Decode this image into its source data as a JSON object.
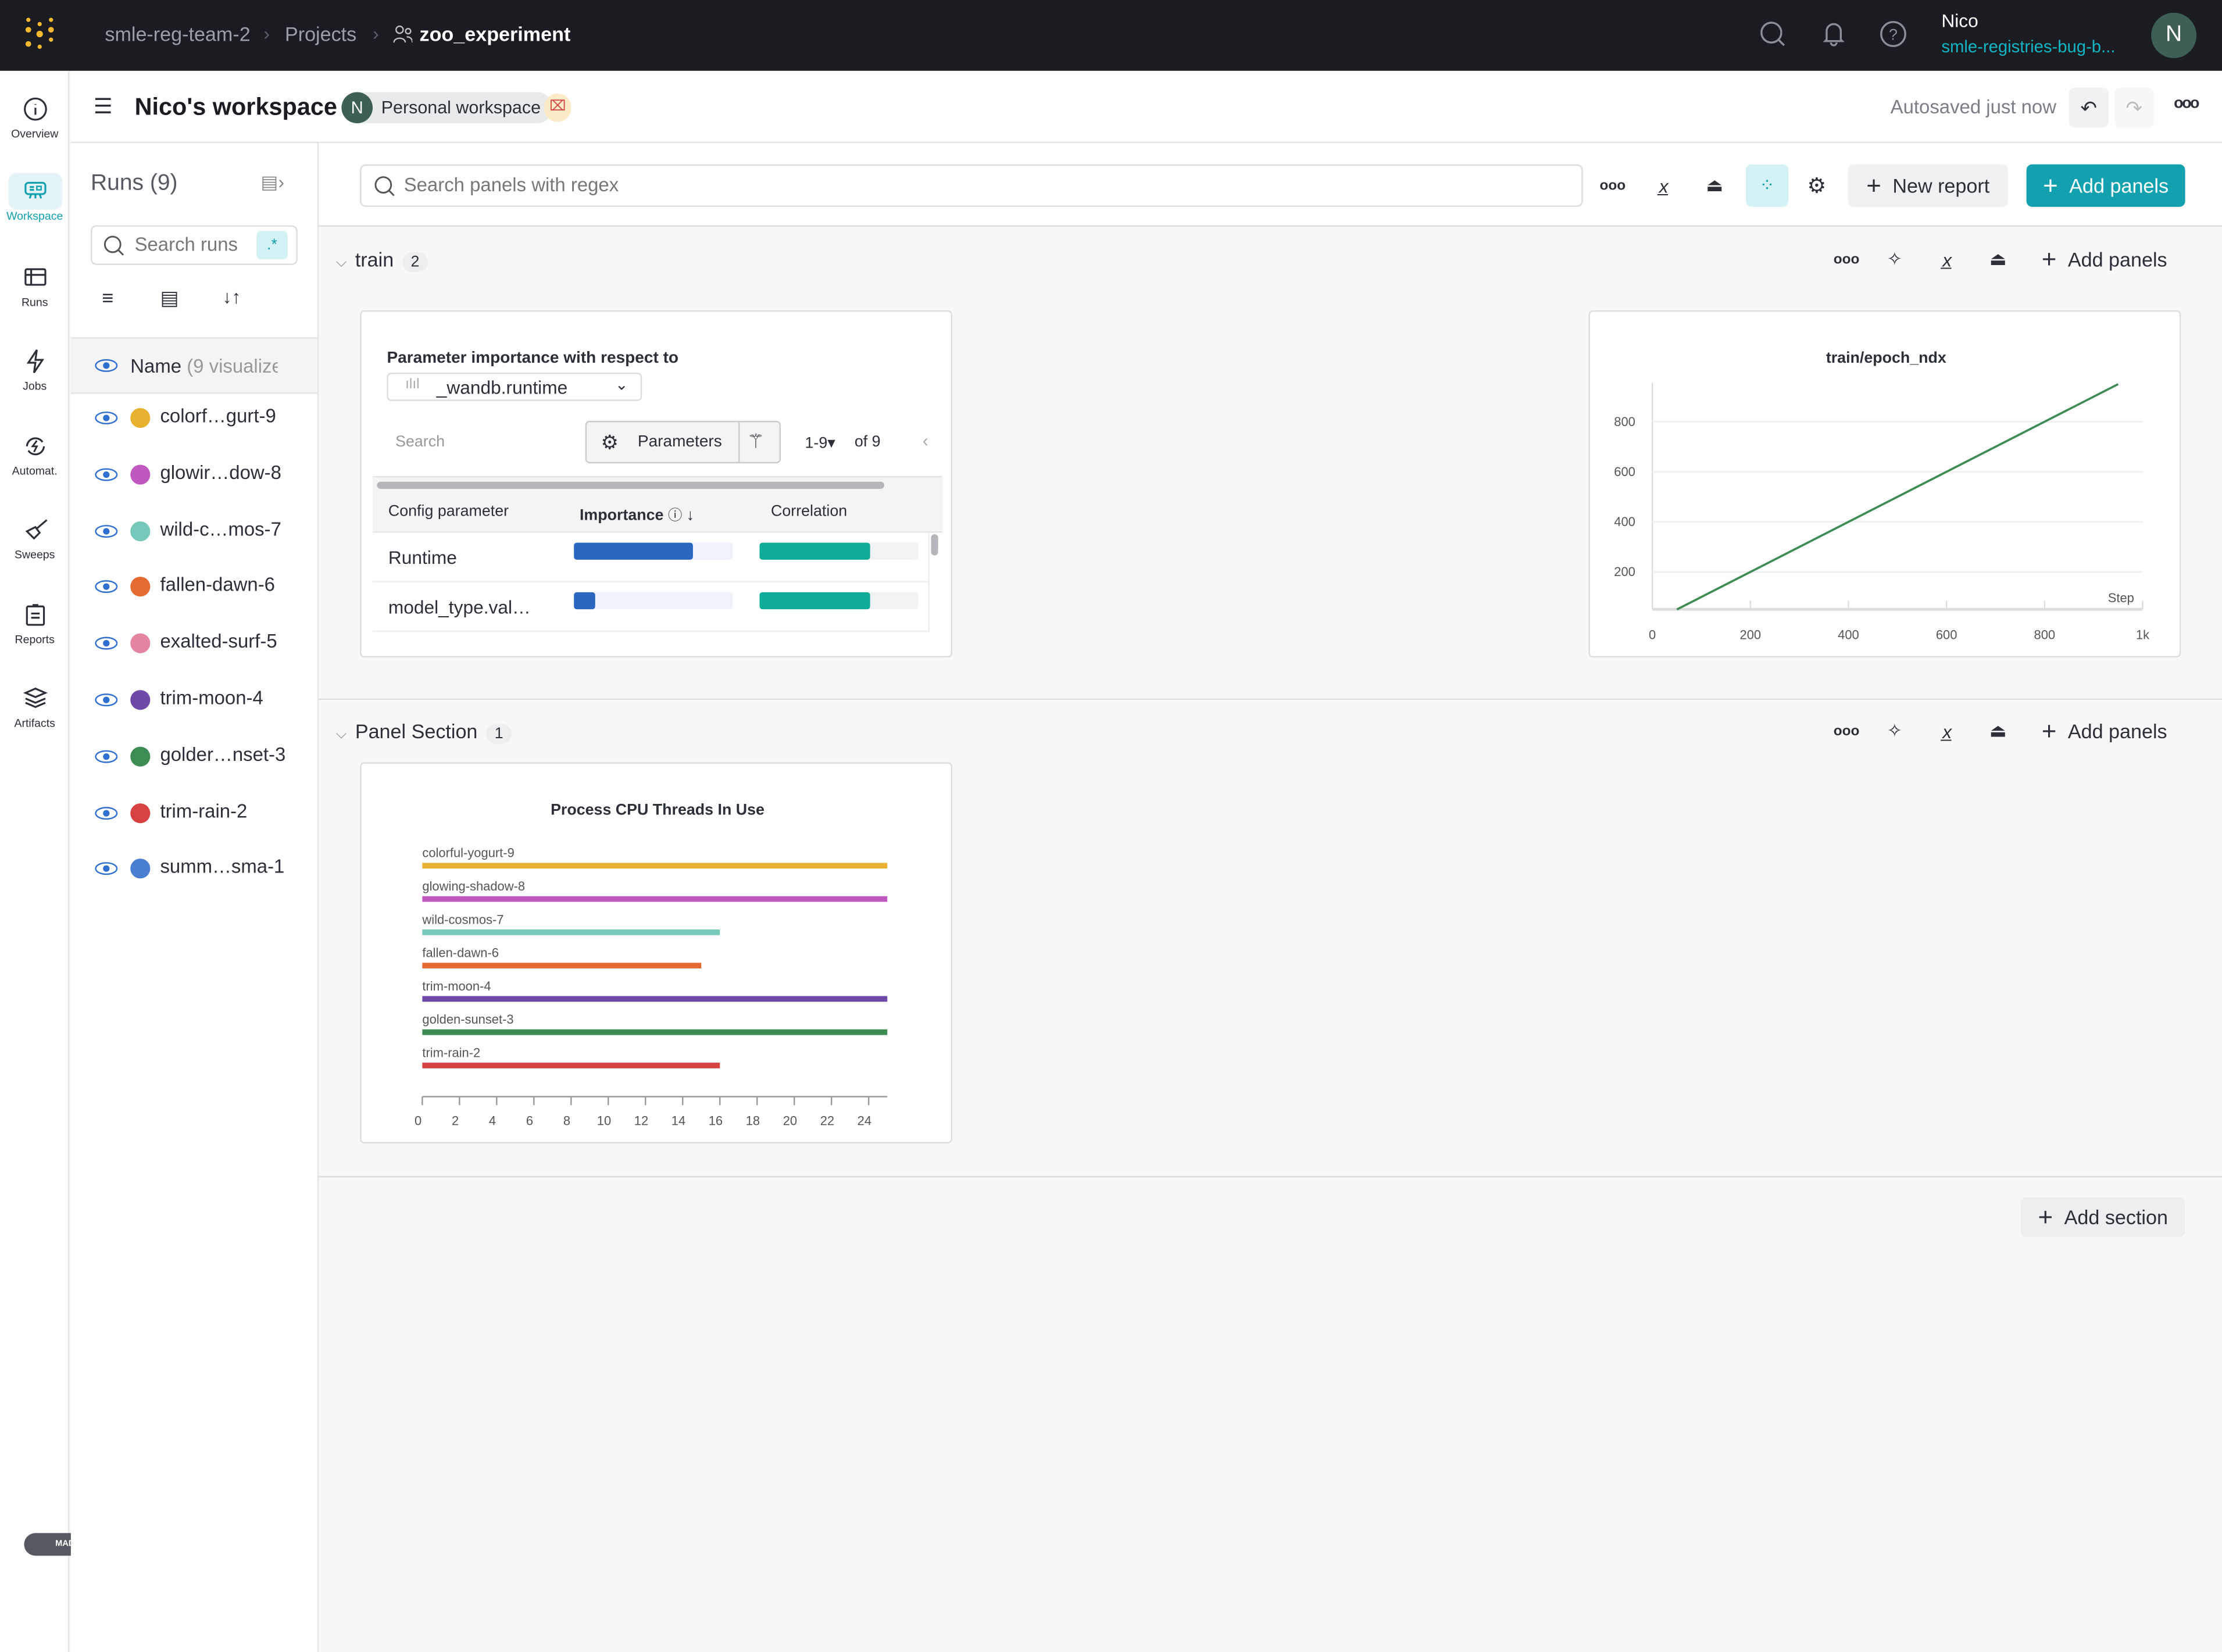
{
  "topbar": {
    "breadcrumbs": [
      "smle-reg-team-2",
      "Projects",
      "zoo_experiment"
    ],
    "user_name": "Nico",
    "user_org": "smle-registries-bug-b...",
    "avatar_letter": "N",
    "icons": [
      "wandb-logo-icon",
      "search-icon",
      "bell-icon",
      "help-icon"
    ]
  },
  "nav": {
    "items": [
      {
        "label": "Overview",
        "icon": "info-icon"
      },
      {
        "label": "Workspace",
        "icon": "workspace-icon",
        "active": true
      },
      {
        "label": "Runs",
        "icon": "table-icon"
      },
      {
        "label": "Jobs",
        "icon": "lightning-icon"
      },
      {
        "label": "Automat.",
        "icon": "automation-icon"
      },
      {
        "label": "Sweeps",
        "icon": "broom-icon"
      },
      {
        "label": "Reports",
        "icon": "report-icon"
      },
      {
        "label": "Artifacts",
        "icon": "layers-icon"
      }
    ]
  },
  "header": {
    "title": "Nico's workspace",
    "avatar_letter": "N",
    "workspace_type": "Personal workspace",
    "autosave": "Autosaved just now"
  },
  "runs": {
    "title": "Runs (9)",
    "search_placeholder": "Search runs",
    "regex_label": ".*",
    "name_col": "Name",
    "name_col_hint": "(9 visualize",
    "items": [
      {
        "name": "colorf…gurt-9",
        "color": "#e9b130"
      },
      {
        "name": "glowir…dow-8",
        "color": "#bf59c0"
      },
      {
        "name": "wild-c…mos-7",
        "color": "#74c9ba"
      },
      {
        "name": "fallen-dawn-6",
        "color": "#e36a31"
      },
      {
        "name": "exalted-surf-5",
        "color": "#e584a0"
      },
      {
        "name": "trim-moon-4",
        "color": "#7048a8"
      },
      {
        "name": "golder…nset-3",
        "color": "#3c8c54"
      },
      {
        "name": "trim-rain-2",
        "color": "#d64242"
      },
      {
        "name": "summ…sma-1",
        "color": "#4a7ed0"
      }
    ]
  },
  "toolbar": {
    "search_placeholder": "Search panels with regex",
    "new_report": "New report",
    "add_panels": "Add panels",
    "accent": "#13a1b0"
  },
  "sections": [
    {
      "name": "train",
      "count": "2",
      "add_panels": "Add panels"
    },
    {
      "name": "Panel Section",
      "count": "1",
      "add_panels": "Add panels"
    }
  ],
  "add_section": "Add section",
  "param_panel": {
    "title": "Parameter importance with respect to",
    "metric": "_wandb.runtime",
    "search_placeholder": "Search",
    "parameters_btn": "Parameters",
    "pager": "1-9",
    "pager_of": "of 9",
    "columns": [
      "Config parameter",
      "Importance",
      "Correlation"
    ],
    "rows": [
      {
        "name": "Runtime",
        "importance": 0.75,
        "correlation": 0.7
      },
      {
        "name": "model_type.val…",
        "importance": 0.13,
        "correlation": 0.7
      }
    ]
  },
  "chart_data": [
    {
      "type": "line",
      "title": "train/epoch_ndx",
      "xlabel": "Step",
      "xlim": [
        0,
        1000
      ],
      "xticks": [
        "0",
        "200",
        "400",
        "600",
        "800",
        "1k"
      ],
      "yticks": [
        "200",
        "400",
        "600",
        "800"
      ],
      "grid": true,
      "series": [
        {
          "color": "#3c8c54",
          "x": [
            50,
            950
          ],
          "y": [
            50,
            950
          ]
        }
      ]
    },
    {
      "type": "bar",
      "orientation": "horizontal",
      "title": "Process CPU Threads In Use",
      "xlim": [
        0,
        25
      ],
      "xticks": [
        "0",
        "2",
        "4",
        "6",
        "8",
        "10",
        "12",
        "14",
        "16",
        "18",
        "20",
        "22",
        "24"
      ],
      "categories": [
        "colorful-yogurt-9",
        "glowing-shadow-8",
        "wild-cosmos-7",
        "fallen-dawn-6",
        "trim-moon-4",
        "golden-sunset-3",
        "trim-rain-2"
      ],
      "values": [
        25,
        25,
        16,
        15,
        25,
        25,
        16
      ],
      "colors": [
        "#e9b130",
        "#bf59c0",
        "#74c9ba",
        "#e36a31",
        "#7048a8",
        "#3c8c54",
        "#d64242"
      ]
    }
  ],
  "watermark": "MADE WITH GIFOX"
}
